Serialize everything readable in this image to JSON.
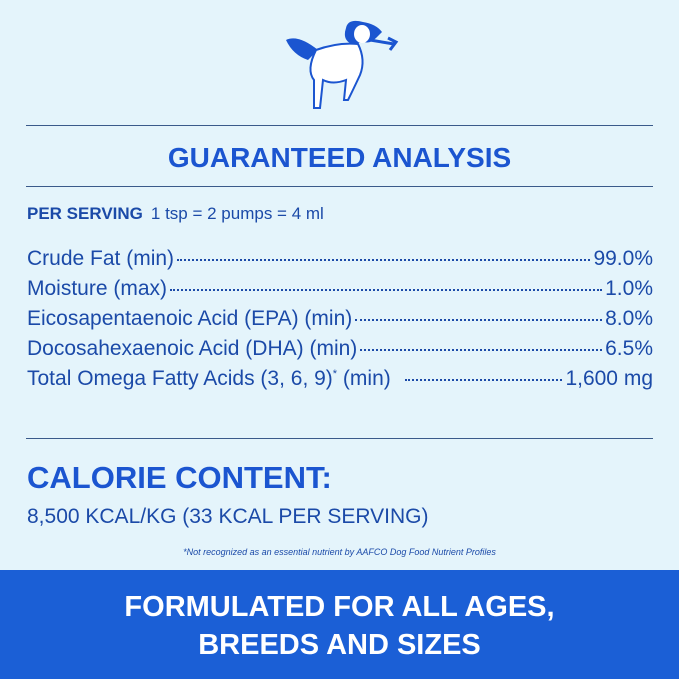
{
  "title": "GUARANTEED ANALYSIS",
  "per_serving": {
    "label": "PER SERVING",
    "value": "1 tsp = 2 pumps = 4 ml"
  },
  "rows": [
    {
      "name": "Crude Fat (min)",
      "value": "99.0%"
    },
    {
      "name": "Moisture (max)",
      "value": "1.0%"
    },
    {
      "name": "Eicosapentaenoic Acid (EPA) (min)",
      "value": "8.0%"
    },
    {
      "name": "Docosahexaenoic Acid (DHA) (min)",
      "value": "6.5%"
    },
    {
      "name": "Total Omega Fatty Acids (3, 6, 9)",
      "mark": "*",
      "suffix": "(min)",
      "value": "1,600 mg"
    }
  ],
  "calorie": {
    "heading": "CALORIE CONTENT:",
    "value": "8,500 KCAL/KG (33 KCAL PER SERVING)"
  },
  "footnote": "*Not recognized as an essential nutrient by AAFCO Dog Food Nutrient Profiles",
  "banner": {
    "line1": "FORMULATED FOR ALL AGES,",
    "line2": "BREEDS AND SIZES"
  },
  "colors": {
    "background": "#e4f4fb",
    "text": "#1b55c4",
    "banner": "#1b5fd6"
  }
}
